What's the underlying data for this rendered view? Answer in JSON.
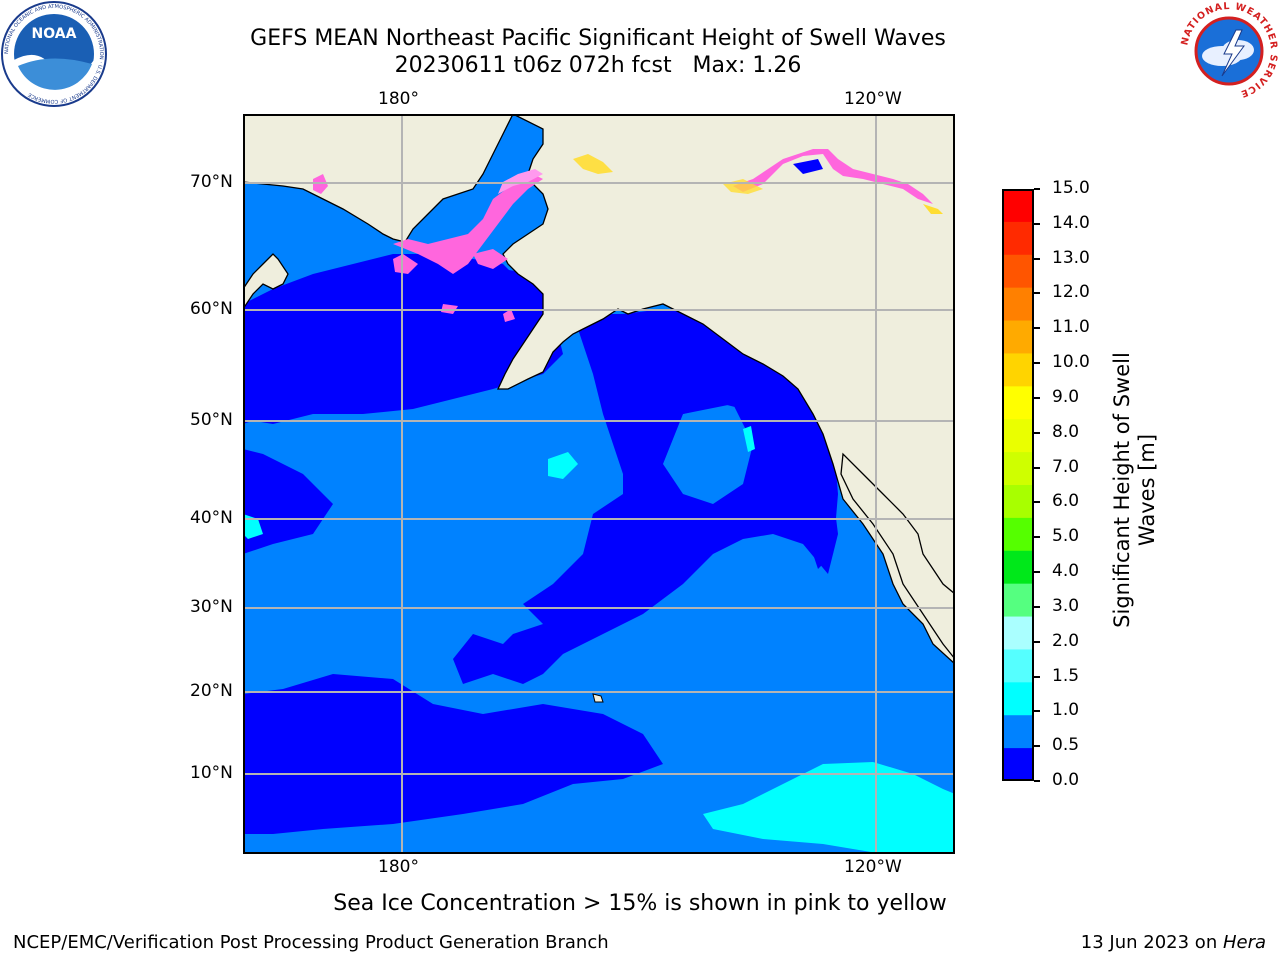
{
  "title": {
    "line1": "GEFS MEAN Northeast Pacific Significant Height of Swell Waves",
    "line2": "20230611 t06z 072h fcst   Max: 1.26"
  },
  "map": {
    "top_lon_labels": [
      "180°",
      "120°W"
    ],
    "bottom_lon_labels": [
      "180°",
      "120°W"
    ],
    "lat_labels": [
      "70°N",
      "60°N",
      "50°N",
      "40°N",
      "30°N",
      "20°N",
      "10°N"
    ],
    "colors": {
      "land": "#efeedd",
      "coast": "#000000",
      "grid": "#b4b4b4",
      "ocean_low": "#0000ff",
      "ocean_mid": "#0082ff",
      "ocean_high": "#00ffff",
      "ice_pink": "#ff66dd",
      "ice_yellow": "#ffdd33"
    }
  },
  "colorbar": {
    "label_line1": "Significant Height of Swell",
    "label_line2": "Waves [m]",
    "ticks": [
      "15.0",
      "14.0",
      "13.0",
      "12.0",
      "11.0",
      "10.0",
      "9.0",
      "8.0",
      "7.0",
      "6.0",
      "5.0",
      "4.0",
      "3.0",
      "2.0",
      "1.5",
      "1.0",
      "0.5",
      "0.0"
    ],
    "colors_top_to_bottom": [
      "#ff0000",
      "#ff2a00",
      "#ff5500",
      "#ff8000",
      "#ffaa00",
      "#ffd400",
      "#ffff00",
      "#eaff00",
      "#cfff00",
      "#a8ff00",
      "#55ff00",
      "#00e81a",
      "#55ff80",
      "#aaffff",
      "#55ffff",
      "#00ffff",
      "#0082ff",
      "#0000ff"
    ]
  },
  "note": "Sea Ice Concentration > 15% is shown in pink to yellow",
  "footer": {
    "left": "NCEP/EMC/Verification Post Processing Product Generation Branch",
    "right_date": "13 Jun 2023 on ",
    "right_machine": "Hera"
  },
  "logos": {
    "noaa_text": "NOAA",
    "noaa_ring": "NATIONAL OCEANIC AND ATMOSPHERIC ADMINISTRATION · U.S. DEPARTMENT OF COMMERCE",
    "nws_ring": "NATIONAL WEATHER SERVICE"
  }
}
